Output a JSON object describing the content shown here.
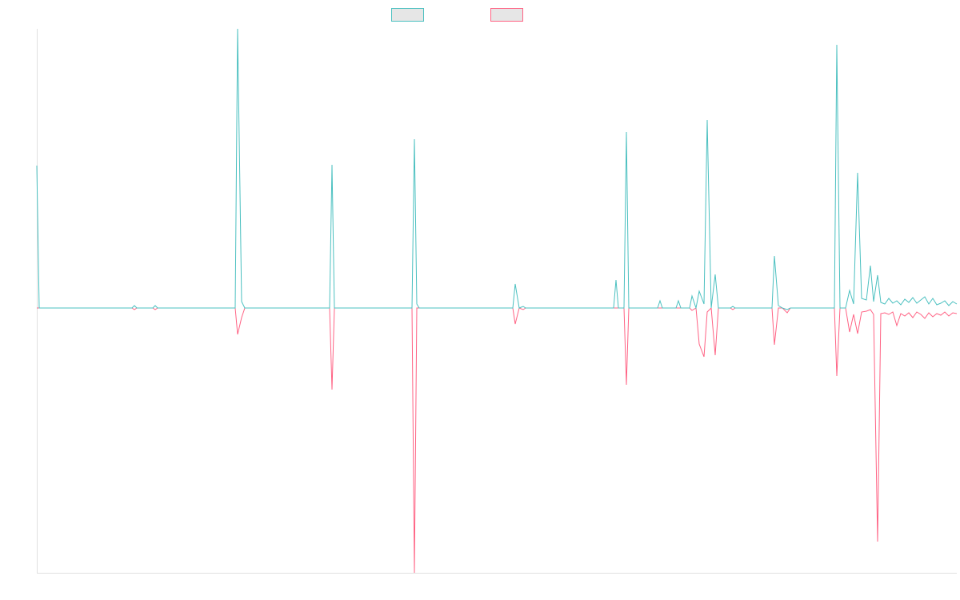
{
  "chart_data": {
    "type": "line",
    "x": [
      0,
      3,
      119,
      122,
      125,
      145,
      148,
      151,
      248,
      251,
      256,
      260,
      366,
      369,
      372,
      469,
      472,
      475,
      478,
      595,
      598,
      603,
      608,
      611,
      721,
      724,
      727,
      734,
      737,
      740,
      776,
      779,
      782,
      799,
      802,
      805,
      816,
      819,
      824,
      828,
      834,
      838,
      843,
      848,
      852,
      867,
      870,
      873,
      919,
      922,
      927,
      932,
      938,
      942,
      997,
      1000,
      1004,
      1011,
      1016,
      1021,
      1026,
      1031,
      1037,
      1042,
      1046,
      1051,
      1055,
      1060,
      1065,
      1070,
      1075,
      1080,
      1085,
      1090,
      1095,
      1100,
      1105,
      1110,
      1115,
      1120,
      1125,
      1130,
      1135,
      1140,
      1145,
      1150
    ],
    "series": [
      {
        "color": "#4bc0c0",
        "values": [
          178,
          0,
          0,
          3,
          0,
          0,
          3,
          0,
          0,
          349,
          8,
          0,
          0,
          179,
          0,
          0,
          211,
          5,
          0,
          0,
          30,
          0,
          2,
          0,
          0,
          35,
          0,
          0,
          220,
          0,
          0,
          9,
          0,
          0,
          9,
          0,
          0,
          15,
          0,
          21,
          5,
          235,
          0,
          42,
          0,
          0,
          2,
          0,
          0,
          65,
          3,
          0,
          -2,
          0,
          0,
          329,
          0,
          0,
          22,
          5,
          169,
          12,
          10,
          53,
          8,
          41,
          7,
          5,
          12,
          6,
          9,
          4,
          11,
          7,
          13,
          6,
          10,
          14,
          5,
          12,
          4,
          6,
          9,
          3,
          8,
          5
        ]
      },
      {
        "color": "#ff6384",
        "values": [
          0,
          0,
          0,
          -2,
          0,
          0,
          -2,
          0,
          0,
          -33,
          -12,
          0,
          0,
          -102,
          0,
          0,
          -331,
          0,
          0,
          0,
          -20,
          0,
          -2,
          0,
          0,
          0,
          0,
          0,
          -96,
          0,
          0,
          0,
          0,
          0,
          0,
          0,
          0,
          -3,
          0,
          -45,
          -61,
          -5,
          0,
          -59,
          0,
          0,
          -2,
          0,
          0,
          -46,
          0,
          0,
          -6,
          0,
          0,
          -85,
          0,
          0,
          -30,
          -8,
          -32,
          -5,
          -4,
          -2,
          -8,
          -292,
          -7,
          -6,
          -8,
          -5,
          -22,
          -7,
          -10,
          -6,
          -12,
          -5,
          -8,
          -13,
          -6,
          -11,
          -7,
          -9,
          -5,
          -10,
          -6,
          -7
        ]
      }
    ],
    "xlim": [
      0,
      1150
    ],
    "ylim": [
      -331,
      349
    ],
    "grid": false
  }
}
